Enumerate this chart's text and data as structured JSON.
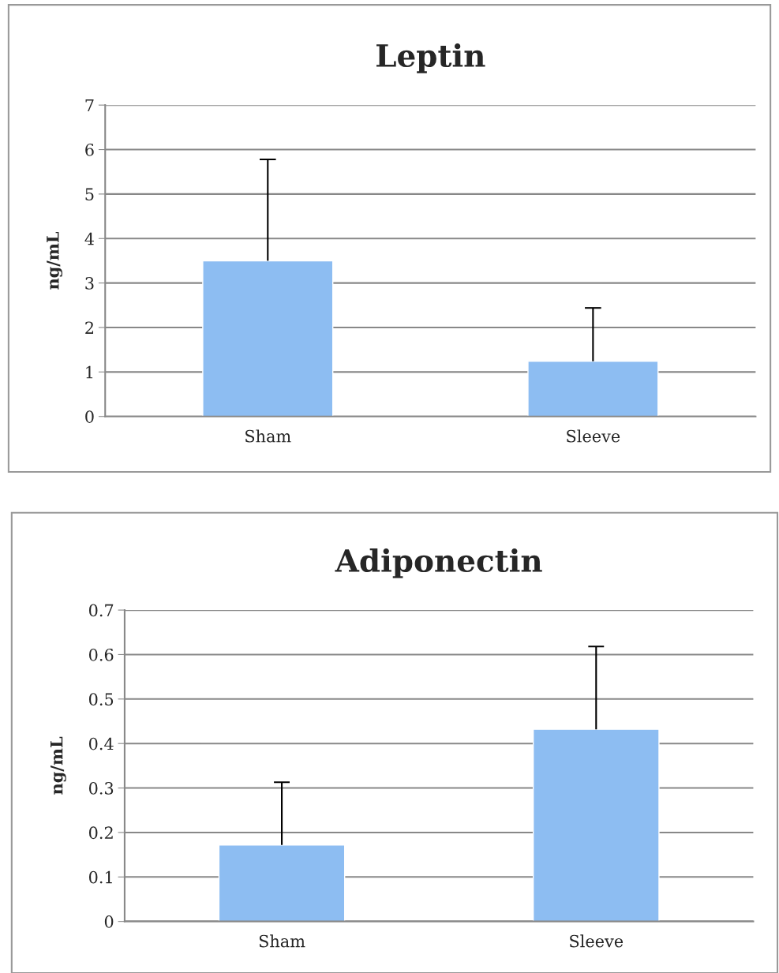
{
  "chart_data": [
    {
      "type": "bar",
      "title": "Leptin",
      "ylabel": "ng/mL",
      "categories": [
        "Sham",
        "Sleeve"
      ],
      "values": [
        3.5,
        1.24
      ],
      "errors": [
        [
          3.5,
          5.78
        ],
        [
          1.24,
          2.44
        ]
      ],
      "color": "#8dbdf2",
      "ylim": [
        0,
        7
      ],
      "yticks": [
        0,
        1,
        2,
        3,
        4,
        5,
        6,
        7
      ],
      "grid": "y",
      "legend": false
    },
    {
      "type": "bar",
      "title": "Adiponectin",
      "ylabel": "ng/mL",
      "categories": [
        "Sham",
        "Sleeve"
      ],
      "values": [
        0.172,
        0.432
      ],
      "errors": [
        [
          0.172,
          0.313
        ],
        [
          0.432,
          0.618
        ]
      ],
      "color": "#8dbdf2",
      "ylim": [
        0,
        0.7
      ],
      "yticks": [
        0,
        0.1,
        0.2,
        0.3,
        0.4,
        0.5,
        0.6,
        0.7
      ],
      "grid": "y",
      "legend": false
    }
  ]
}
